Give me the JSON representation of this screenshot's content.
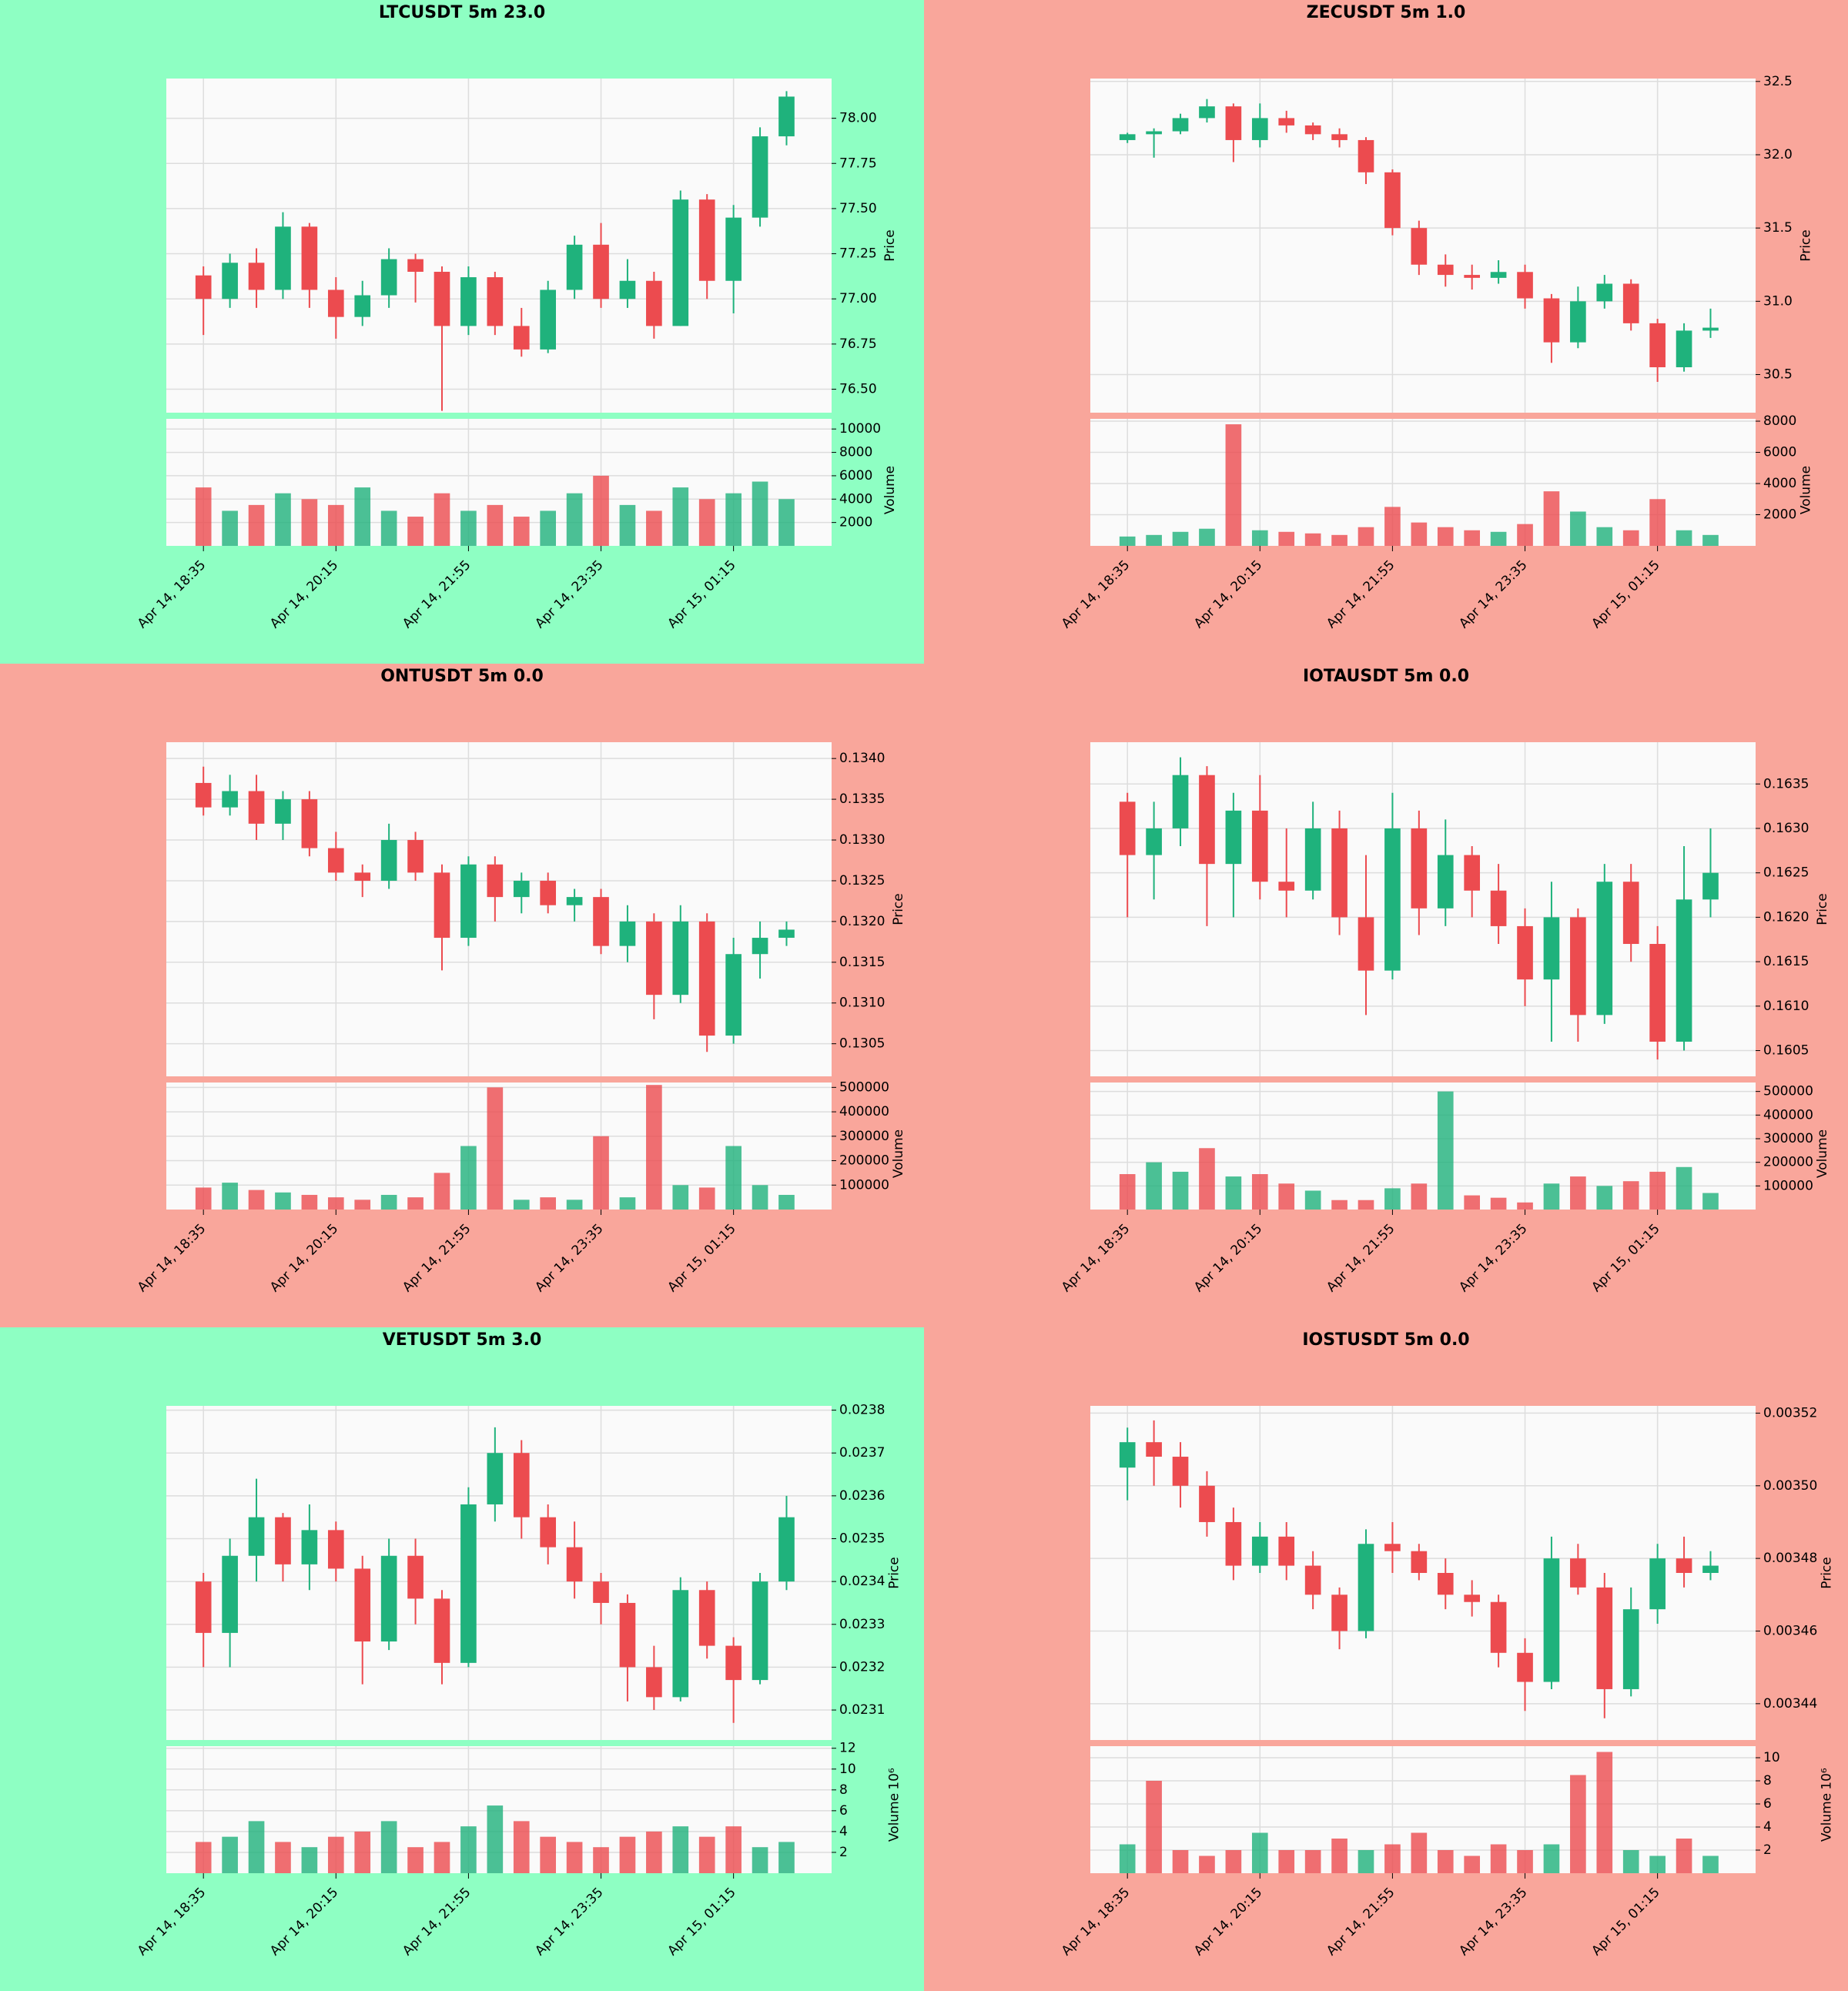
{
  "chart_data": [
    {
      "type": "candlestick",
      "title": "LTCUSDT 5m 23.0",
      "background": "#8effc3",
      "categories": [
        "Apr 14, 18:35",
        null,
        null,
        null,
        null,
        "Apr 14, 20:15",
        null,
        null,
        null,
        null,
        "Apr 14, 21:55",
        null,
        null,
        null,
        null,
        "Apr 14, 23:35",
        null,
        null,
        null,
        null,
        "Apr 15, 01:15",
        null,
        null
      ],
      "open": [
        77.13,
        77.0,
        77.2,
        77.05,
        77.4,
        77.05,
        76.9,
        77.02,
        77.22,
        77.15,
        76.85,
        77.12,
        76.85,
        76.72,
        77.05,
        77.3,
        77.0,
        77.1,
        76.85,
        77.55,
        77.1,
        77.45,
        77.9
      ],
      "high": [
        77.18,
        77.25,
        77.28,
        77.48,
        77.42,
        77.12,
        77.1,
        77.28,
        77.25,
        77.18,
        77.18,
        77.15,
        76.95,
        77.1,
        77.35,
        77.42,
        77.22,
        77.15,
        77.6,
        77.58,
        77.52,
        77.95,
        78.15
      ],
      "low": [
        76.8,
        76.95,
        76.95,
        77.0,
        76.95,
        76.78,
        76.85,
        76.95,
        76.98,
        76.38,
        76.8,
        76.8,
        76.68,
        76.7,
        77.0,
        76.95,
        76.95,
        76.78,
        76.85,
        77.0,
        76.92,
        77.4,
        77.85
      ],
      "close": [
        77.0,
        77.2,
        77.05,
        77.4,
        77.05,
        76.9,
        77.02,
        77.22,
        77.15,
        76.85,
        77.12,
        76.85,
        76.72,
        77.05,
        77.3,
        77.0,
        77.1,
        76.85,
        77.55,
        77.1,
        77.45,
        77.9,
        78.12
      ],
      "volume": [
        5000,
        3000,
        3500,
        4500,
        4000,
        3500,
        5000,
        3000,
        2500,
        4500,
        3000,
        3500,
        2500,
        3000,
        4500,
        6000,
        3500,
        3000,
        5000,
        4000,
        4500,
        5500,
        4000
      ],
      "up_color": "#1fb27c",
      "down_color": "#ec4b4f",
      "grid": true,
      "ylabel": "Price",
      "ylim": [
        76.37,
        78.22
      ],
      "yticks": [
        {
          "value": 76.5,
          "label": "76.50"
        },
        76.75,
        {
          "value": 77,
          "label": "77.00"
        },
        77.25,
        {
          "value": 77.5,
          "label": "77.50"
        },
        77.75,
        {
          "value": 78,
          "label": "78.00"
        }
      ],
      "y2label": "Volume",
      "y2lim": [
        0,
        10870
      ],
      "y2ticks": [
        2000,
        4000,
        6000,
        8000,
        10000
      ]
    },
    {
      "type": "candlestick",
      "title": "ZECUSDT 5m 1.0",
      "background": "#f9a69b",
      "categories": [
        "Apr 14, 18:35",
        null,
        null,
        null,
        null,
        "Apr 14, 20:15",
        null,
        null,
        null,
        null,
        "Apr 14, 21:55",
        null,
        null,
        null,
        null,
        "Apr 14, 23:35",
        null,
        null,
        null,
        null,
        "Apr 15, 01:15",
        null,
        null
      ],
      "open": [
        32.1,
        32.14,
        32.16,
        32.25,
        32.33,
        32.1,
        32.25,
        32.2,
        32.14,
        32.1,
        31.88,
        31.5,
        31.25,
        31.18,
        31.16,
        31.2,
        31.02,
        30.72,
        31.0,
        31.12,
        30.85,
        30.55,
        30.8
      ],
      "high": [
        32.15,
        32.18,
        32.28,
        32.38,
        32.35,
        32.35,
        32.3,
        32.22,
        32.18,
        32.12,
        31.9,
        31.55,
        31.32,
        31.25,
        31.28,
        31.25,
        31.05,
        31.1,
        31.18,
        31.15,
        30.88,
        30.85,
        30.95
      ],
      "low": [
        32.08,
        31.98,
        32.14,
        32.22,
        31.95,
        32.05,
        32.15,
        32.1,
        32.05,
        31.8,
        31.45,
        31.18,
        31.1,
        31.08,
        31.12,
        30.95,
        30.58,
        30.68,
        30.95,
        30.8,
        30.45,
        30.52,
        30.75
      ],
      "close": [
        32.14,
        32.16,
        32.25,
        32.33,
        32.1,
        32.25,
        32.2,
        32.14,
        32.1,
        31.88,
        31.5,
        31.25,
        31.18,
        31.16,
        31.2,
        31.02,
        30.72,
        31.0,
        31.12,
        30.85,
        30.55,
        30.8,
        30.82
      ],
      "volume": [
        600,
        700,
        900,
        1100,
        7800,
        1000,
        900,
        800,
        700,
        1200,
        2500,
        1500,
        1200,
        1000,
        900,
        1400,
        3500,
        2200,
        1200,
        1000,
        3000,
        1000,
        700
      ],
      "up_color": "#1fb27c",
      "down_color": "#ec4b4f",
      "grid": true,
      "ylabel": "Price",
      "ylim": [
        30.24,
        32.52
      ],
      "yticks": [
        30.5,
        {
          "value": 31,
          "label": "31.0"
        },
        31.5,
        {
          "value": 32,
          "label": "32.0"
        },
        32.5
      ],
      "y2label": "Volume",
      "y2lim": [
        0,
        8150
      ],
      "y2ticks": [
        2000,
        4000,
        6000,
        8000
      ]
    },
    {
      "type": "candlestick",
      "title": "ONTUSDT 5m 0.0",
      "background": "#f9a69b",
      "categories": [
        "Apr 14, 18:35",
        null,
        null,
        null,
        null,
        "Apr 14, 20:15",
        null,
        null,
        null,
        null,
        "Apr 14, 21:55",
        null,
        null,
        null,
        null,
        "Apr 14, 23:35",
        null,
        null,
        null,
        null,
        "Apr 15, 01:15",
        null,
        null
      ],
      "open": [
        0.1337,
        0.1334,
        0.1336,
        0.1332,
        0.1335,
        0.1329,
        0.1326,
        0.1325,
        0.133,
        0.1326,
        0.1318,
        0.1327,
        0.1323,
        0.1325,
        0.1322,
        0.1323,
        0.1317,
        0.132,
        0.1311,
        0.132,
        0.1306,
        0.1316,
        0.1318
      ],
      "high": [
        0.1339,
        0.1338,
        0.1338,
        0.1336,
        0.1336,
        0.1331,
        0.1327,
        0.1332,
        0.1331,
        0.1327,
        0.1328,
        0.1328,
        0.1326,
        0.1326,
        0.1324,
        0.1324,
        0.1322,
        0.1321,
        0.1322,
        0.1321,
        0.1318,
        0.132,
        0.132
      ],
      "low": [
        0.1333,
        0.1333,
        0.133,
        0.133,
        0.1328,
        0.1325,
        0.1323,
        0.1324,
        0.1325,
        0.1314,
        0.1317,
        0.132,
        0.1321,
        0.1321,
        0.132,
        0.1316,
        0.1315,
        0.1308,
        0.131,
        0.1304,
        0.1305,
        0.1313,
        0.1317
      ],
      "close": [
        0.1334,
        0.1336,
        0.1332,
        0.1335,
        0.1329,
        0.1326,
        0.1325,
        0.133,
        0.1326,
        0.1318,
        0.1327,
        0.1323,
        0.1325,
        0.1322,
        0.1323,
        0.1317,
        0.132,
        0.1311,
        0.132,
        0.1306,
        0.1316,
        0.1318,
        0.1319
      ],
      "volume": [
        90000,
        110000,
        80000,
        70000,
        60000,
        50000,
        40000,
        60000,
        50000,
        150000,
        260000,
        500000,
        40000,
        50000,
        40000,
        300000,
        50000,
        510000,
        100000,
        90000,
        260000,
        100000,
        60000
      ],
      "up_color": "#1fb27c",
      "down_color": "#ec4b4f",
      "grid": true,
      "ylabel": "Price",
      "ylim": [
        0.1301,
        0.1342
      ],
      "yticks": [
        0.1305,
        {
          "value": 0.131,
          "label": "0.1310"
        },
        0.1315,
        {
          "value": 0.132,
          "label": "0.1320"
        },
        0.1325,
        {
          "value": 0.133,
          "label": "0.1330"
        },
        0.1335,
        {
          "value": 0.134,
          "label": "0.1340"
        }
      ],
      "y2label": "Volume",
      "y2lim": [
        0,
        520000
      ],
      "y2ticks": [
        100000,
        200000,
        300000,
        400000,
        500000
      ]
    },
    {
      "type": "candlestick",
      "title": "IOTAUSDT 5m 0.0",
      "background": "#f9a69b",
      "categories": [
        "Apr 14, 18:35",
        null,
        null,
        null,
        null,
        "Apr 14, 20:15",
        null,
        null,
        null,
        null,
        "Apr 14, 21:55",
        null,
        null,
        null,
        null,
        "Apr 14, 23:35",
        null,
        null,
        null,
        null,
        "Apr 15, 01:15",
        null,
        null
      ],
      "open": [
        0.1633,
        0.1627,
        0.163,
        0.1636,
        0.1626,
        0.1632,
        0.1624,
        0.1623,
        0.163,
        0.162,
        0.1614,
        0.163,
        0.1621,
        0.1627,
        0.1623,
        0.1619,
        0.1613,
        0.162,
        0.1609,
        0.1624,
        0.1617,
        0.1606,
        0.1622
      ],
      "high": [
        0.1634,
        0.1633,
        0.1638,
        0.1637,
        0.1634,
        0.1636,
        0.163,
        0.1633,
        0.1632,
        0.1627,
        0.1634,
        0.1632,
        0.1631,
        0.1628,
        0.1626,
        0.1621,
        0.1624,
        0.1621,
        0.1626,
        0.1626,
        0.1619,
        0.1628,
        0.163
      ],
      "low": [
        0.162,
        0.1622,
        0.1628,
        0.1619,
        0.162,
        0.1622,
        0.162,
        0.1622,
        0.1618,
        0.1609,
        0.1613,
        0.1618,
        0.1619,
        0.162,
        0.1617,
        0.161,
        0.1606,
        0.1606,
        0.1608,
        0.1615,
        0.1604,
        0.1605,
        0.162
      ],
      "close": [
        0.1627,
        0.163,
        0.1636,
        0.1626,
        0.1632,
        0.1624,
        0.1623,
        0.163,
        0.162,
        0.1614,
        0.163,
        0.1621,
        0.1627,
        0.1623,
        0.1619,
        0.1613,
        0.162,
        0.1609,
        0.1624,
        0.1617,
        0.1606,
        0.1622,
        0.1625
      ],
      "volume": [
        150000,
        200000,
        160000,
        260000,
        140000,
        150000,
        110000,
        80000,
        40000,
        40000,
        90000,
        110000,
        500000,
        60000,
        50000,
        30000,
        110000,
        140000,
        100000,
        120000,
        160000,
        180000,
        70000
      ],
      "up_color": "#1fb27c",
      "down_color": "#ec4b4f",
      "grid": true,
      "ylabel": "Price",
      "ylim": [
        0.16021,
        0.16397
      ],
      "yticks": [
        0.1605,
        {
          "value": 0.161,
          "label": "0.1610"
        },
        0.1615,
        {
          "value": 0.162,
          "label": "0.1620"
        },
        0.1625,
        {
          "value": 0.163,
          "label": "0.1630"
        },
        0.1635
      ],
      "y2label": "Volume",
      "y2lim": [
        0,
        538000
      ],
      "y2ticks": [
        100000,
        200000,
        300000,
        400000,
        500000
      ]
    },
    {
      "type": "candlestick",
      "title": "VETUSDT 5m 3.0",
      "background": "#8effc3",
      "categories": [
        "Apr 14, 18:35",
        null,
        null,
        null,
        null,
        "Apr 14, 20:15",
        null,
        null,
        null,
        null,
        "Apr 14, 21:55",
        null,
        null,
        null,
        null,
        "Apr 14, 23:35",
        null,
        null,
        null,
        null,
        "Apr 15, 01:15",
        null,
        null
      ],
      "open": [
        0.0234,
        0.02328,
        0.02346,
        0.02355,
        0.02344,
        0.02352,
        0.02343,
        0.02326,
        0.02346,
        0.02336,
        0.02321,
        0.02358,
        0.0237,
        0.02355,
        0.02348,
        0.0234,
        0.02335,
        0.0232,
        0.02313,
        0.02338,
        0.02325,
        0.02317,
        0.0234
      ],
      "high": [
        0.02342,
        0.0235,
        0.02364,
        0.02356,
        0.02358,
        0.02354,
        0.02346,
        0.0235,
        0.0235,
        0.02338,
        0.02362,
        0.02376,
        0.02373,
        0.02358,
        0.02354,
        0.02342,
        0.02337,
        0.02325,
        0.02341,
        0.0234,
        0.02327,
        0.02342,
        0.0236
      ],
      "low": [
        0.0232,
        0.0232,
        0.0234,
        0.0234,
        0.02338,
        0.0234,
        0.02316,
        0.02324,
        0.0233,
        0.02316,
        0.0232,
        0.02354,
        0.0235,
        0.02344,
        0.02336,
        0.0233,
        0.02312,
        0.0231,
        0.02312,
        0.02322,
        0.02307,
        0.02316,
        0.02338
      ],
      "close": [
        0.02328,
        0.02346,
        0.02355,
        0.02344,
        0.02352,
        0.02343,
        0.02326,
        0.02346,
        0.02336,
        0.02321,
        0.02358,
        0.0237,
        0.02355,
        0.02348,
        0.0234,
        0.02335,
        0.0232,
        0.02313,
        0.02338,
        0.02325,
        0.02317,
        0.0234,
        0.02355
      ],
      "volume": [
        3,
        3.5,
        5,
        3,
        2.5,
        3.5,
        4,
        5,
        2.5,
        3,
        4.5,
        6.5,
        5,
        3.5,
        3,
        2.5,
        3.5,
        4,
        4.5,
        3.5,
        4.5,
        2.5,
        3
      ],
      "up_color": "#1fb27c",
      "down_color": "#ec4b4f",
      "grid": true,
      "ylabel": "Price",
      "ylim": [
        0.02303,
        0.02381
      ],
      "yticks": [
        0.0231,
        0.0232,
        0.0233,
        0.0234,
        0.0235,
        0.0236,
        0.0237,
        0.0238
      ],
      "y2label": "Volume",
      "y2_offset_label": "10⁶",
      "y2lim": [
        0,
        12.2
      ],
      "y2ticks": [
        2,
        4,
        6,
        8,
        10,
        12
      ]
    },
    {
      "type": "candlestick",
      "title": "IOSTUSDT 5m 0.0",
      "background": "#f9a69b",
      "categories": [
        "Apr 14, 18:35",
        null,
        null,
        null,
        null,
        "Apr 14, 20:15",
        null,
        null,
        null,
        null,
        "Apr 14, 21:55",
        null,
        null,
        null,
        null,
        "Apr 14, 23:35",
        null,
        null,
        null,
        null,
        "Apr 15, 01:15",
        null,
        null
      ],
      "open": [
        0.003505,
        0.003512,
        0.003508,
        0.0035,
        0.00349,
        0.003478,
        0.003486,
        0.003478,
        0.00347,
        0.00346,
        0.003484,
        0.003482,
        0.003476,
        0.00347,
        0.003468,
        0.003454,
        0.003446,
        0.00348,
        0.003472,
        0.003444,
        0.003466,
        0.00348,
        0.003476
      ],
      "high": [
        0.003516,
        0.003518,
        0.003512,
        0.003504,
        0.003494,
        0.00349,
        0.00349,
        0.003482,
        0.003472,
        0.003488,
        0.00349,
        0.003484,
        0.00348,
        0.003474,
        0.00347,
        0.003458,
        0.003486,
        0.003484,
        0.003476,
        0.003472,
        0.003484,
        0.003486,
        0.003482
      ],
      "low": [
        0.003496,
        0.0035,
        0.003494,
        0.003486,
        0.003474,
        0.003476,
        0.003474,
        0.003466,
        0.003455,
        0.003458,
        0.003476,
        0.003474,
        0.003466,
        0.003464,
        0.00345,
        0.003438,
        0.003444,
        0.00347,
        0.003436,
        0.003442,
        0.003462,
        0.003472,
        0.003474
      ],
      "close": [
        0.003512,
        0.003508,
        0.0035,
        0.00349,
        0.003478,
        0.003486,
        0.003478,
        0.00347,
        0.00346,
        0.003484,
        0.003482,
        0.003476,
        0.00347,
        0.003468,
        0.003454,
        0.003446,
        0.00348,
        0.003472,
        0.003444,
        0.003466,
        0.00348,
        0.003476,
        0.003478
      ],
      "volume": [
        2.5,
        8,
        2,
        1.5,
        2,
        3.5,
        2,
        2,
        3,
        2,
        2.5,
        3.5,
        2,
        1.5,
        2.5,
        2,
        2.5,
        8.5,
        10.5,
        2,
        1.5,
        3,
        1.5
      ],
      "up_color": "#1fb27c",
      "down_color": "#ec4b4f",
      "grid": true,
      "ylabel": "Price",
      "ylim": [
        0.00343,
        0.003522
      ],
      "yticks": [
        0.00344,
        0.00346,
        0.00348,
        {
          "value": 0.0035,
          "label": "0.00350"
        },
        0.00352
      ],
      "y2label": "Volume",
      "y2_offset_label": "10⁶",
      "y2lim": [
        0,
        11
      ],
      "y2ticks": [
        2,
        4,
        6,
        8,
        10
      ]
    }
  ]
}
